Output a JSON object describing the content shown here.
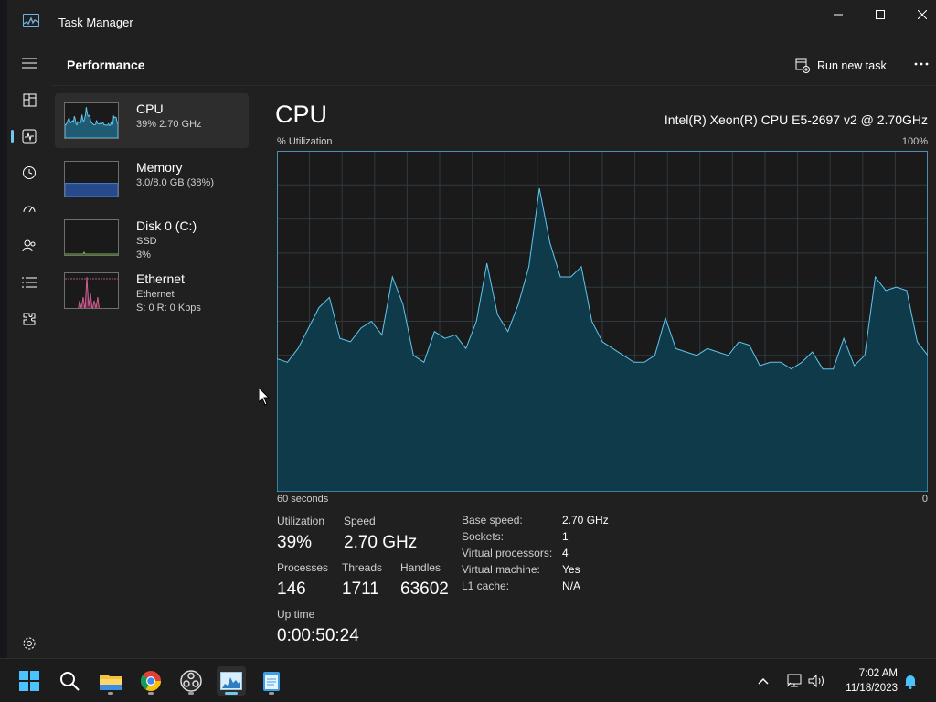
{
  "window": {
    "title": "Task Manager",
    "minimize_icon": "minimize-icon",
    "maximize_icon": "maximize-icon",
    "close_icon": "close-icon"
  },
  "nav": {
    "items": [
      {
        "name": "hamburger-menu-icon"
      },
      {
        "name": "processes-icon"
      },
      {
        "name": "performance-icon",
        "active": true
      },
      {
        "name": "app-history-icon"
      },
      {
        "name": "startup-apps-icon"
      },
      {
        "name": "users-icon"
      },
      {
        "name": "details-icon"
      },
      {
        "name": "services-icon"
      }
    ],
    "settings_icon": "settings-gear-icon"
  },
  "header": {
    "title": "Performance",
    "run_new_task_label": "Run new task",
    "more_icon": "more-options-icon"
  },
  "sidebar": {
    "items": [
      {
        "name": "CPU",
        "line1": "39% 2.70 GHz",
        "line2": "",
        "selected": true,
        "color": "#5fc6ee"
      },
      {
        "name": "Memory",
        "line1": "3.0/8.0 GB (38%)",
        "line2": "",
        "color": "#4d7fd1",
        "fill": 0.38
      },
      {
        "name": "Disk 0 (C:)",
        "line1": "SSD",
        "line2": "3%",
        "color": "#7bc043"
      },
      {
        "name": "Ethernet",
        "line1": "Ethernet",
        "line2": "S: 0 R: 0 Kbps",
        "color": "#e06ca0"
      }
    ]
  },
  "main": {
    "title": "CPU",
    "model": "Intel(R) Xeon(R) CPU E5-2697 v2 @ 2.70GHz",
    "y_label": "% Utilization",
    "y_max_label": "100%",
    "x_left_label": "60 seconds",
    "x_right_label": "0"
  },
  "chart_data": {
    "type": "area",
    "title": "CPU",
    "xlabel": "60 seconds",
    "ylabel": "% Utilization",
    "ylim": [
      0,
      100
    ],
    "xlim": [
      60,
      0
    ],
    "grid": true,
    "color": "#5fc6ee",
    "series": [
      {
        "values": [
          39,
          38,
          42,
          48,
          54,
          57,
          45,
          44,
          48,
          50,
          46,
          63,
          55,
          40,
          38,
          47,
          45,
          46,
          42,
          50,
          67,
          52,
          47,
          55,
          66,
          89,
          73,
          63,
          63,
          66,
          50,
          44,
          42,
          40,
          38,
          38,
          40,
          51,
          42,
          41,
          40,
          42,
          41,
          40,
          44,
          43,
          37,
          38,
          38,
          36,
          38,
          41,
          36,
          36,
          45,
          37,
          40,
          63,
          59,
          60,
          59,
          44,
          40
        ]
      }
    ]
  },
  "stats": {
    "utilization": {
      "label": "Utilization",
      "value": "39%"
    },
    "speed": {
      "label": "Speed",
      "value": "2.70 GHz"
    },
    "processes": {
      "label": "Processes",
      "value": "146"
    },
    "threads": {
      "label": "Threads",
      "value": "1711"
    },
    "handles": {
      "label": "Handles",
      "value": "63602"
    },
    "uptime": {
      "label": "Up time",
      "value": "0:00:50:24"
    }
  },
  "details": [
    {
      "key": "Base speed:",
      "value": "2.70 GHz"
    },
    {
      "key": "Sockets:",
      "value": "1"
    },
    {
      "key": "Virtual processors:",
      "value": "4"
    },
    {
      "key": "Virtual machine:",
      "value": "Yes"
    },
    {
      "key": "L1 cache:",
      "value": "N/A"
    }
  ],
  "taskbar": {
    "apps": [
      {
        "name": "start-icon"
      },
      {
        "name": "search-icon"
      },
      {
        "name": "file-explorer-icon",
        "running": true
      },
      {
        "name": "chrome-icon",
        "running": true
      },
      {
        "name": "obs-icon",
        "running": true
      },
      {
        "name": "task-manager-icon",
        "running": true,
        "active": true
      },
      {
        "name": "notepad-icon",
        "running": true
      }
    ],
    "tray": [
      "show-hidden-icons-icon",
      "network-icon",
      "volume-icon",
      "notification-bell-icon"
    ],
    "time": "7:02 AM",
    "date": "11/18/2023"
  }
}
